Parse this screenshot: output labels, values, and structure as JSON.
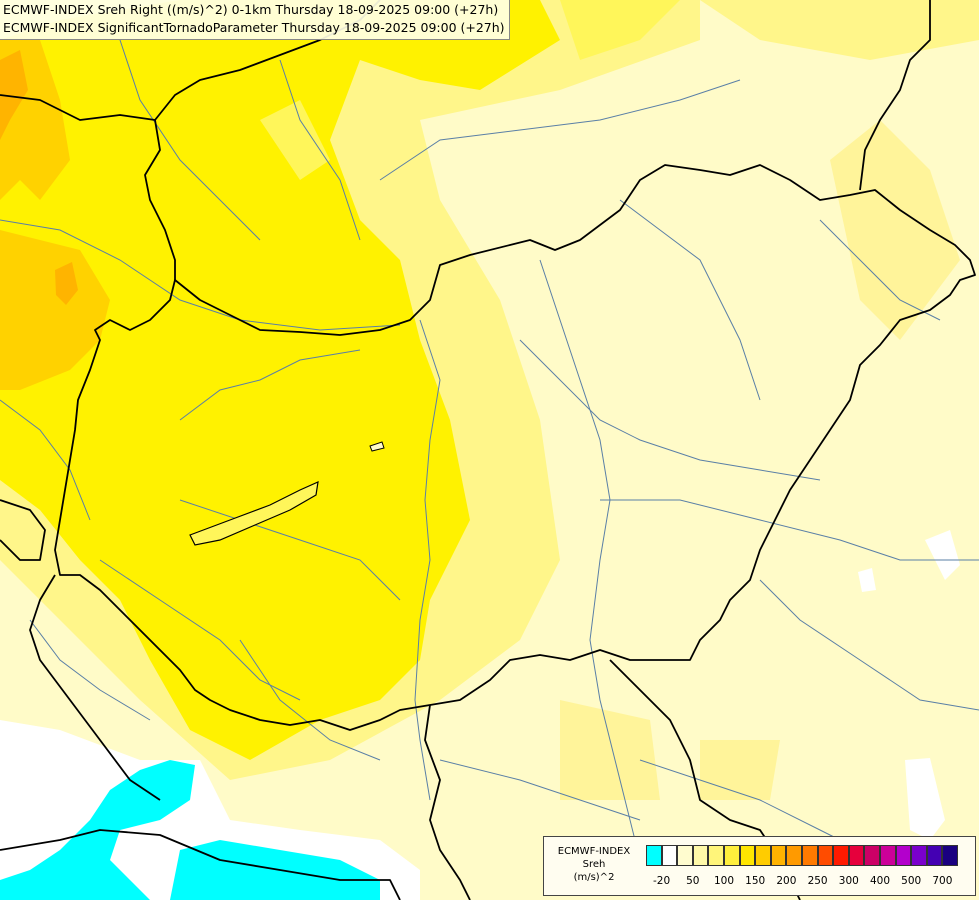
{
  "title": {
    "line1": "ECMWF-INDEX Sreh Right ((m/s)^2) 0-1km Thursday 18-09-2025 09:00 (+27h)",
    "line2": "ECMWF-INDEX SignificantTornadoParameter Thursday 18-09-2025 09:00 (+27h)"
  },
  "legend": {
    "title_line1": "ECMWF-INDEX",
    "title_line2": "Sreh",
    "title_line3": "(m/s)^2",
    "swatch_colors": [
      "#00ffff",
      "#ffffff",
      "#fffccf",
      "#fff9a8",
      "#fff57a",
      "#ffef3c",
      "#ffe600",
      "#ffcc00",
      "#ffb300",
      "#ff9a00",
      "#ff7a00",
      "#ff4c00",
      "#ff1a00",
      "#e6003c",
      "#cc0066",
      "#cc0099",
      "#b300cc",
      "#7a00cc",
      "#4400b3",
      "#1a0080"
    ],
    "ticks": [
      "-20",
      "50",
      "100",
      "150",
      "200",
      "250",
      "300",
      "400",
      "500",
      "700"
    ]
  },
  "colors": {
    "sea_cyan": "#00ffff",
    "light_yellow": "#fffbc8",
    "yellow": "#fff77a",
    "bright_yellow": "#fff200",
    "orange_yellow": "#ffc800",
    "border": "#000000",
    "river": "#5a7fa6"
  }
}
